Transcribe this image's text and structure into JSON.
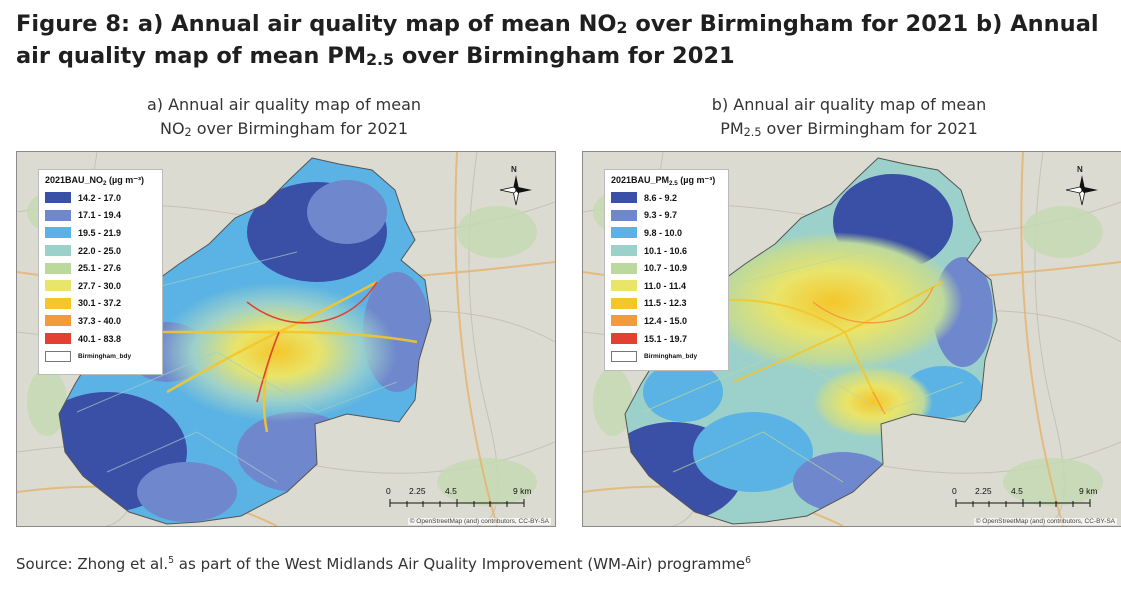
{
  "figure": {
    "title_part1": "Figure 8: a) Annual air quality map of mean NO",
    "title_sub1": "2",
    "title_part2": " over Birmingham for 2021 b) Annual air quality map of mean PM",
    "title_sub2": "2.5",
    "title_part3": " over Birmingham for 2021"
  },
  "maps": [
    {
      "subtitle_line1": "a) Annual air quality map of mean",
      "subtitle_pollutant": "NO",
      "subtitle_sub": "2",
      "subtitle_rest": " over Birmingham for 2021",
      "legend_title_prefix": "2021BAU_NO",
      "legend_title_sub": "2",
      "legend_title_suffix": " (µg m⁻³)",
      "legend": [
        {
          "label": "14.2 - 17.0",
          "color": "#3a4fa6"
        },
        {
          "label": "17.1 - 19.4",
          "color": "#6f87cc"
        },
        {
          "label": "19.5 - 21.9",
          "color": "#5ab3e4"
        },
        {
          "label": "22.0 - 25.0",
          "color": "#9bd0cb"
        },
        {
          "label": "25.1 - 27.6",
          "color": "#bcd99d"
        },
        {
          "label": "27.7 - 30.0",
          "color": "#e9e46a"
        },
        {
          "label": "30.1 - 37.2",
          "color": "#f5c62a"
        },
        {
          "label": "37.3 - 40.0",
          "color": "#f39a3a"
        },
        {
          "label": "40.1 - 83.8",
          "color": "#e24030"
        }
      ],
      "boundary_label": "Birmingham_bdy"
    },
    {
      "subtitle_line1": "b) Annual air quality map of mean",
      "subtitle_pollutant": "PM",
      "subtitle_sub": "2.5",
      "subtitle_rest": " over Birmingham for 2021",
      "legend_title_prefix": "2021BAU_PM",
      "legend_title_sub": "2.5",
      "legend_title_suffix": " (µg m⁻³)",
      "legend": [
        {
          "label": "8.6 - 9.2",
          "color": "#3a4fa6"
        },
        {
          "label": "9.3 - 9.7",
          "color": "#6f87cc"
        },
        {
          "label": "9.8 - 10.0",
          "color": "#5ab3e4"
        },
        {
          "label": "10.1 - 10.6",
          "color": "#9bd0cb"
        },
        {
          "label": "10.7 - 10.9",
          "color": "#bcd99d"
        },
        {
          "label": "11.0 - 11.4",
          "color": "#e9e46a"
        },
        {
          "label": "11.5 - 12.3",
          "color": "#f5c62a"
        },
        {
          "label": "12.4 - 15.0",
          "color": "#f39a3a"
        },
        {
          "label": "15.1 - 19.7",
          "color": "#e24030"
        }
      ],
      "boundary_label": "Birmingham_bdy"
    }
  ],
  "map_common": {
    "north_label": "N",
    "scale_labels": [
      "0",
      "2.25",
      "4.5",
      "9 km"
    ],
    "attribution": "© OpenStreetMap (and) contributors, CC-BY-SA"
  },
  "source": {
    "text1": "Source: Zhong et al.",
    "sup1": "5",
    "text2": " as part of the West Midlands Air Quality Improvement (WM-Air) programme",
    "sup2": "6"
  }
}
